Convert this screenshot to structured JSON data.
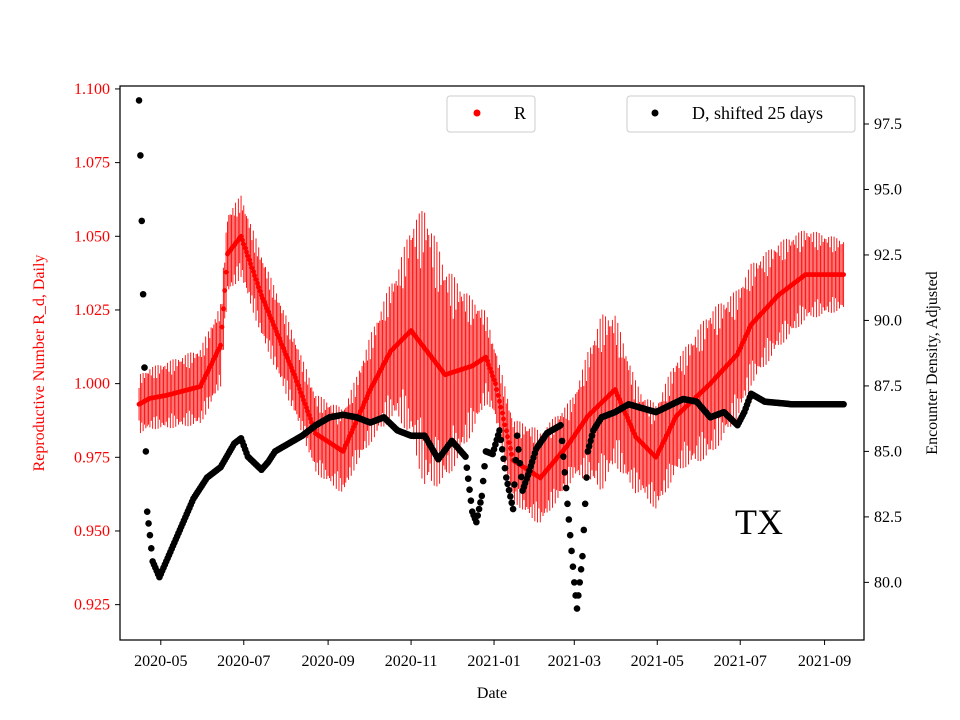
{
  "chart_data": {
    "type": "scatter",
    "annotation": "TX",
    "xlabel": "Date",
    "x_ticks": [
      "2020-05",
      "2020-07",
      "2020-09",
      "2020-11",
      "2021-01",
      "2021-03",
      "2021-05",
      "2021-07",
      "2021-09"
    ],
    "left_axis": {
      "label": "Reproductive Number R_d, Daily",
      "color": "#ff0000",
      "ylim": [
        0.913,
        1.101
      ],
      "ticks": [
        "0.925",
        "0.950",
        "0.975",
        "1.000",
        "1.025",
        "1.050",
        "1.075",
        "1.100"
      ]
    },
    "right_axis": {
      "label": "Encounter Density, Adjusted",
      "color": "#000000",
      "ylim": [
        77.8,
        98.95
      ],
      "ticks": [
        "80.0",
        "82.5",
        "85.0",
        "87.5",
        "90.0",
        "92.5",
        "95.0",
        "97.5"
      ]
    },
    "legends": [
      {
        "label": "R",
        "color": "#ff0000"
      },
      {
        "label": "D, shifted 25 days",
        "color": "#000000"
      }
    ],
    "series": [
      {
        "name": "R",
        "axis": "left",
        "color": "#ff0000",
        "x_start": "2020-04-15",
        "x_end": "2021-09-15",
        "knots_day": [
          0,
          8,
          20,
          45,
          60,
          65,
          75,
          90,
          115,
          130,
          150,
          170,
          185,
          200,
          225,
          245,
          255,
          262,
          275,
          295,
          315,
          330,
          350,
          365,
          380,
          395,
          420,
          440,
          450,
          470,
          490,
          518
        ],
        "knots_value": [
          0.993,
          0.995,
          0.996,
          0.999,
          1.013,
          1.044,
          1.05,
          1.03,
          1.002,
          0.983,
          0.977,
          0.998,
          1.011,
          1.018,
          1.003,
          1.006,
          1.009,
          1.0,
          0.974,
          0.968,
          0.979,
          0.989,
          0.998,
          0.982,
          0.975,
          0.989,
          1.0,
          1.01,
          1.02,
          1.03,
          1.037,
          1.037
        ],
        "amp_day": [
          0,
          30,
          60,
          90,
          120,
          160,
          190,
          210,
          260,
          290,
          320,
          340,
          370,
          400,
          420,
          440,
          470,
          518
        ],
        "amp_value": [
          0.01,
          0.012,
          0.014,
          0.014,
          0.013,
          0.015,
          0.025,
          0.048,
          0.012,
          0.016,
          0.014,
          0.03,
          0.017,
          0.02,
          0.025,
          0.022,
          0.018,
          0.012
        ]
      },
      {
        "name": "D, shifted 25 days",
        "axis": "right",
        "color": "#000000",
        "x_start": "2020-04-15",
        "x_end": "2021-09-15",
        "knots_day": [
          0,
          1,
          2,
          3,
          4,
          5,
          6,
          8,
          10,
          15,
          20,
          30,
          40,
          50,
          60,
          70,
          75,
          80,
          90,
          95,
          100,
          110,
          120,
          130,
          140,
          150,
          160,
          170,
          180,
          190,
          200,
          210,
          220,
          230,
          240,
          245,
          248,
          252,
          255,
          260,
          265,
          270,
          275,
          278,
          282,
          286,
          292,
          300,
          310,
          320,
          322,
          326,
          328,
          330,
          334,
          340,
          350,
          360,
          380,
          400,
          410,
          420,
          430,
          440,
          445,
          450,
          460,
          480,
          500,
          518
        ],
        "knots_value": [
          98.4,
          96.3,
          93.8,
          91.0,
          88.2,
          85.0,
          82.7,
          81.8,
          80.8,
          80.2,
          80.8,
          82.0,
          83.2,
          84.0,
          84.4,
          85.3,
          85.5,
          84.8,
          84.3,
          84.6,
          85.0,
          85.3,
          85.6,
          86.0,
          86.3,
          86.4,
          86.3,
          86.1,
          86.3,
          85.8,
          85.6,
          85.6,
          84.7,
          85.4,
          84.8,
          82.7,
          82.3,
          83.3,
          85.0,
          84.9,
          85.8,
          84.0,
          82.8,
          85.6,
          83.5,
          84.1,
          85.1,
          85.7,
          86.0,
          80.0,
          79.0,
          81.0,
          83.0,
          85.0,
          85.8,
          86.3,
          86.5,
          86.8,
          86.5,
          87.0,
          86.9,
          86.3,
          86.5,
          86.0,
          86.5,
          87.2,
          86.9,
          86.8,
          86.8,
          86.8
        ]
      }
    ]
  }
}
